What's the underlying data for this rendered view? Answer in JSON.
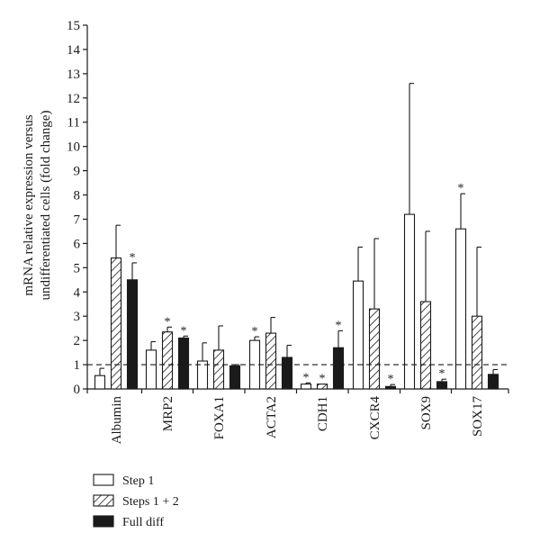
{
  "chart_data": {
    "type": "bar",
    "title": "",
    "xlabel": "",
    "ylabel": "mRNA relative expression versus undifferentiated cells (fold change)",
    "ylabel_lines": [
      "mRNA relative expression versus",
      "undifferentiated cells (fold change)"
    ],
    "ylim": [
      0,
      15
    ],
    "yticks": [
      "0",
      "1",
      "2",
      "3",
      "4",
      "5",
      "6",
      "7",
      "8",
      "9",
      "10",
      "11",
      "12",
      "13",
      "14",
      "15"
    ],
    "reference_line": 1,
    "categories": [
      "Albumin",
      "MRP2",
      "FOXA1",
      "ACTA2",
      "CDH1",
      "CXCR4",
      "SOX9",
      "SOX17"
    ],
    "legend_position": "bottom-left",
    "series": [
      {
        "name": "Step 1",
        "fill": "white",
        "values": [
          0.55,
          1.6,
          1.15,
          2.0,
          0.2,
          4.45,
          7.2,
          6.6
        ],
        "errors": [
          0.3,
          0.35,
          0.75,
          0.15,
          0.05,
          1.4,
          5.4,
          1.45
        ],
        "sig": [
          "",
          "",
          "",
          "*",
          "*",
          "",
          "",
          "*"
        ]
      },
      {
        "name": "Steps 1 + 2",
        "fill": "hatch",
        "values": [
          5.4,
          2.35,
          1.6,
          2.3,
          0.2,
          3.3,
          3.6,
          3.0
        ],
        "errors": [
          1.35,
          0.2,
          1.0,
          0.65,
          0.0,
          2.9,
          2.9,
          2.85
        ],
        "sig": [
          "",
          "*",
          "",
          "",
          "*",
          "",
          "",
          ""
        ]
      },
      {
        "name": "Full diff",
        "fill": "black",
        "values": [
          4.5,
          2.1,
          0.95,
          1.3,
          1.7,
          0.1,
          0.3,
          0.6
        ],
        "errors": [
          0.7,
          0.08,
          0.05,
          0.5,
          0.7,
          0.08,
          0.1,
          0.2
        ],
        "sig": [
          "*",
          "*",
          "",
          "",
          "*",
          "*",
          "*",
          ""
        ]
      }
    ],
    "sig_marker": "*"
  }
}
